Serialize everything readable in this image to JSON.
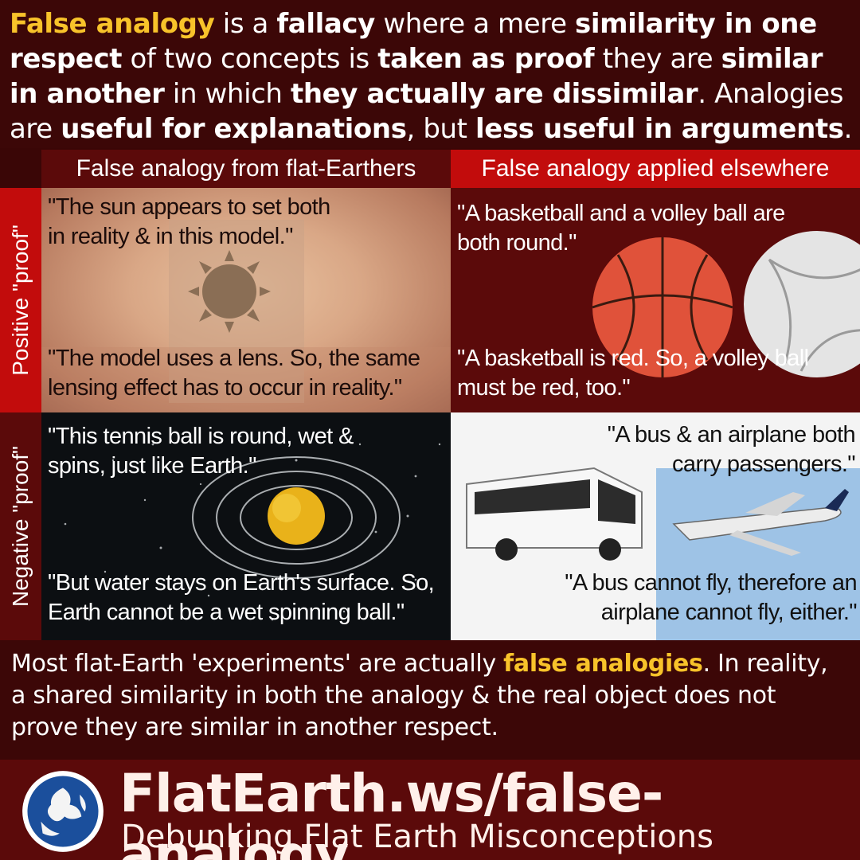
{
  "intro": {
    "p1": "False analogy",
    "p2": " is a ",
    "p3": "fallacy",
    "p4": " where a mere ",
    "p5": "similarity in one respect",
    "p6": " of two concepts is ",
    "p7": "taken as proof",
    "p8": " they are ",
    "p9": "similar in another",
    "p10": " in which ",
    "p11": "they actually are dissimilar",
    "p12": ". Analogies are ",
    "p13": "useful for explanations",
    "p14": ", but ",
    "p15": "less useful in arguments",
    "p16": "."
  },
  "columns": {
    "left": "False analogy from flat-Earthers",
    "right": "False analogy applied elsewhere"
  },
  "rows": {
    "positive": "Positive \"proof\"",
    "negative": "Negative \"proof\""
  },
  "cells": {
    "flat_positive_1": "\"The sun appears to set both in reality & in this model.\"",
    "flat_positive_2": "\"The model uses a lens. So, the same lensing effect has to occur in reality.\"",
    "else_positive_1": "\"A basketball and a volley ball are both round.\"",
    "else_positive_2": "\"A basketball is red. So, a volley ball must be red, too.\"",
    "flat_negative_1": "\"This tennis ball is round, wet & spins, just like Earth.\"",
    "flat_negative_2": "\"But water stays on Earth's surface. So, Earth cannot be a wet spinning ball.\"",
    "else_negative_1": "\"A bus & an airplane both carry passengers.\"",
    "else_negative_2": "\"A bus cannot fly, therefore an airplane cannot fly, either.\""
  },
  "summary": {
    "s1": "Most flat-Earth 'experiments' are actually ",
    "s2": "false analogies",
    "s3": ". In reality, a shared similarity in both the analogy & the real object does not prove they are similar in another respect."
  },
  "footer": {
    "site": "FlatEarth.ws/false-analogy",
    "tagline": "Debunking Flat Earth Misconceptions"
  },
  "colors": {
    "accent": "#f8c32a",
    "dark_red": "#5b0a0a",
    "bright_red": "#c20c0c",
    "background": "#3c0707"
  }
}
